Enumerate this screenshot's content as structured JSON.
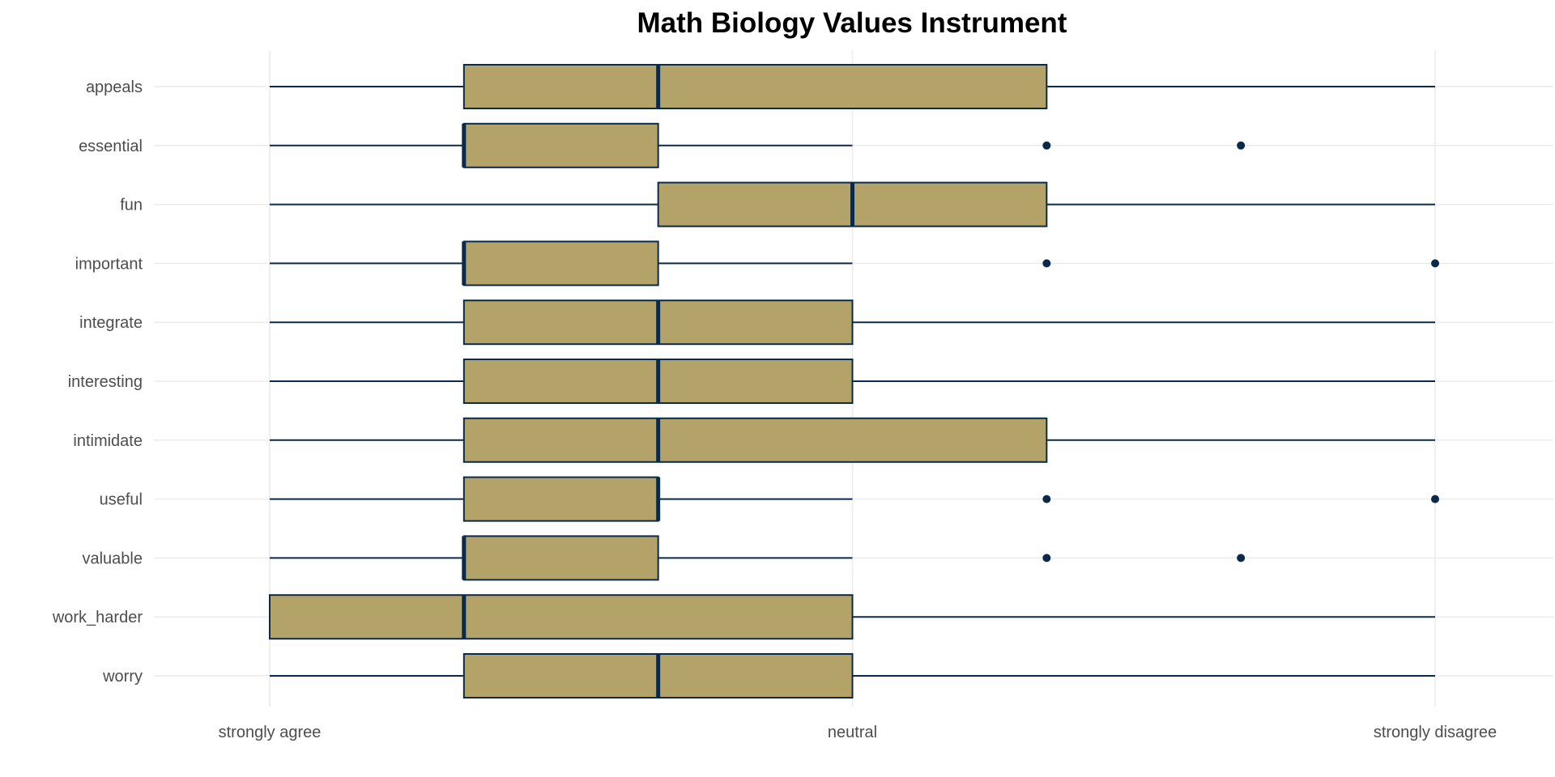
{
  "chart_data": {
    "type": "boxplot",
    "title": "Math Biology Values Instrument",
    "xlabel": "",
    "ylabel": "",
    "orientation": "horizontal",
    "x_ticks": [
      {
        "value": 1,
        "label": "strongly agree"
      },
      {
        "value": 4,
        "label": "neutral"
      },
      {
        "value": 7,
        "label": "strongly disagree"
      }
    ],
    "xlim": [
      0.4,
      7.5
    ],
    "grid": true,
    "colors": {
      "box_fill": "#b3a369",
      "outline": "#0b2a4a",
      "grid": "#ebebeb",
      "title": "#000000",
      "tick_text": "#4d4d4d"
    },
    "series": [
      {
        "category": "appeals",
        "whisker_low": 1,
        "q1": 2,
        "median": 3,
        "q3": 5,
        "whisker_high": 7,
        "outliers": []
      },
      {
        "category": "essential",
        "whisker_low": 1,
        "q1": 2,
        "median": 2,
        "q3": 3,
        "whisker_high": 4,
        "outliers": [
          5,
          6
        ]
      },
      {
        "category": "fun",
        "whisker_low": 1,
        "q1": 3,
        "median": 4,
        "q3": 5,
        "whisker_high": 7,
        "outliers": []
      },
      {
        "category": "important",
        "whisker_low": 1,
        "q1": 2,
        "median": 2,
        "q3": 3,
        "whisker_high": 4,
        "outliers": [
          5,
          7
        ]
      },
      {
        "category": "integrate",
        "whisker_low": 1,
        "q1": 2,
        "median": 3,
        "q3": 4,
        "whisker_high": 7,
        "outliers": []
      },
      {
        "category": "interesting",
        "whisker_low": 1,
        "q1": 2,
        "median": 3,
        "q3": 4,
        "whisker_high": 7,
        "outliers": []
      },
      {
        "category": "intimidate",
        "whisker_low": 1,
        "q1": 2,
        "median": 3,
        "q3": 5,
        "whisker_high": 7,
        "outliers": []
      },
      {
        "category": "useful",
        "whisker_low": 1,
        "q1": 2,
        "median": 3,
        "q3": 3,
        "whisker_high": 4,
        "outliers": [
          5,
          7
        ]
      },
      {
        "category": "valuable",
        "whisker_low": 1,
        "q1": 2,
        "median": 2,
        "q3": 3,
        "whisker_high": 4,
        "outliers": [
          5,
          6
        ]
      },
      {
        "category": "work_harder",
        "whisker_low": 1,
        "q1": 1,
        "median": 2,
        "q3": 4,
        "whisker_high": 7,
        "outliers": []
      },
      {
        "category": "worry",
        "whisker_low": 1,
        "q1": 2,
        "median": 3,
        "q3": 4,
        "whisker_high": 7,
        "outliers": []
      }
    ]
  }
}
